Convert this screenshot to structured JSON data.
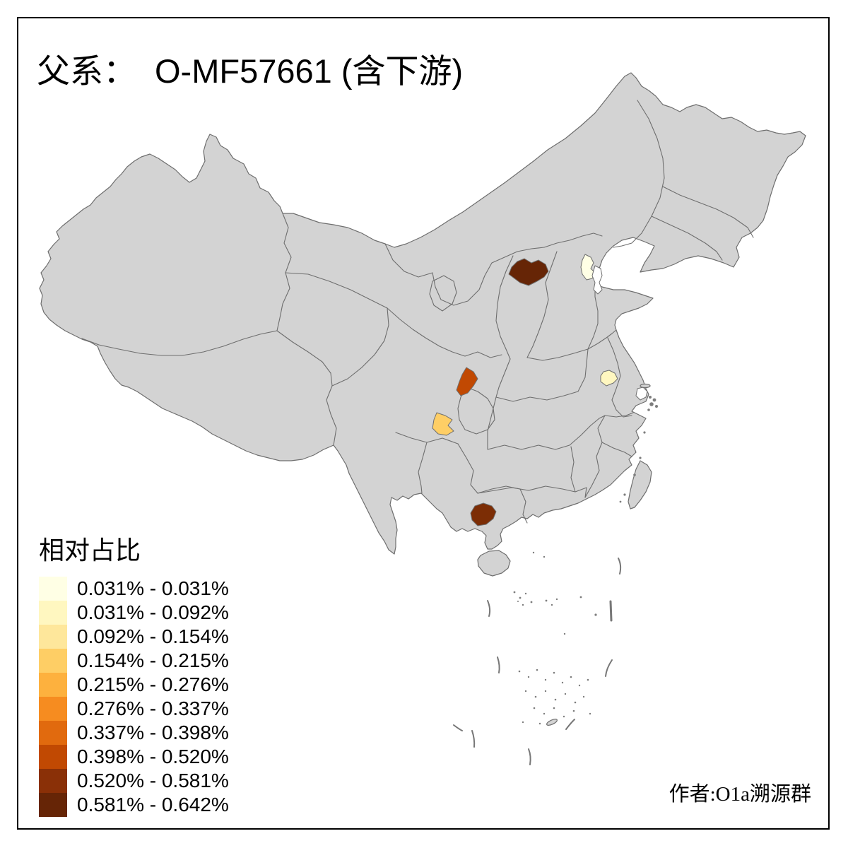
{
  "title": {
    "prefix": "父系：",
    "main": "O-MF57661 (含下游)"
  },
  "legend": {
    "title": "相对占比",
    "items": [
      {
        "label": "0.031% - 0.031%",
        "color": "#FFFFE5"
      },
      {
        "label": "0.031% - 0.092%",
        "color": "#FFF7C0"
      },
      {
        "label": "0.092% - 0.154%",
        "color": "#FEE79B"
      },
      {
        "label": "0.154% - 0.215%",
        "color": "#FECE65"
      },
      {
        "label": "0.215% - 0.276%",
        "color": "#FDB13E"
      },
      {
        "label": "0.276% - 0.337%",
        "color": "#F68C20"
      },
      {
        "label": "0.337% - 0.398%",
        "color": "#E16A0E"
      },
      {
        "label": "0.398% - 0.520%",
        "color": "#C14902"
      },
      {
        "label": "0.520% - 0.581%",
        "color": "#8A3007"
      },
      {
        "label": "0.581% - 0.642%",
        "color": "#662506"
      }
    ]
  },
  "attribution": "作者:O1a溯源群",
  "map": {
    "land_color": "#d3d3d3",
    "border_color": "#6e6e6e",
    "highlights": [
      {
        "name": "north-shanxi-region",
        "value_range": "0.581% - 0.642%",
        "color": "#662506"
      },
      {
        "name": "beijing-region",
        "value_range": "0.031% - 0.031%",
        "color": "#FFFFE5"
      },
      {
        "name": "northeast-sichuan-region",
        "value_range": "0.398% - 0.520%",
        "color": "#C14902"
      },
      {
        "name": "south-sichuan-region",
        "value_range": "0.154% - 0.215%",
        "color": "#FECE65"
      },
      {
        "name": "central-anhui-region",
        "value_range": "0.031% - 0.092%",
        "color": "#FFF7C0"
      },
      {
        "name": "southwest-guangxi-region",
        "value_range": "0.520% - 0.581%",
        "color": "#7C2D05"
      },
      {
        "name": "tianjin-region",
        "value_range": "",
        "color": "#FFFFFF"
      },
      {
        "name": "shanghai-region",
        "value_range": "",
        "color": "#FFFFFF"
      }
    ]
  }
}
